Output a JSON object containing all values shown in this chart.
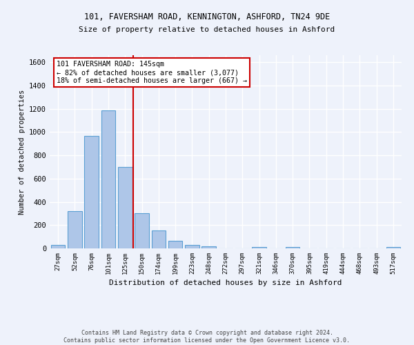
{
  "title1": "101, FAVERSHAM ROAD, KENNINGTON, ASHFORD, TN24 9DE",
  "title2": "Size of property relative to detached houses in Ashford",
  "xlabel": "Distribution of detached houses by size in Ashford",
  "ylabel": "Number of detached properties",
  "footer1": "Contains HM Land Registry data © Crown copyright and database right 2024.",
  "footer2": "Contains public sector information licensed under the Open Government Licence v3.0.",
  "categories": [
    "27sqm",
    "52sqm",
    "76sqm",
    "101sqm",
    "125sqm",
    "150sqm",
    "174sqm",
    "199sqm",
    "223sqm",
    "248sqm",
    "272sqm",
    "297sqm",
    "321sqm",
    "346sqm",
    "370sqm",
    "395sqm",
    "419sqm",
    "444sqm",
    "468sqm",
    "493sqm",
    "517sqm"
  ],
  "values": [
    28,
    320,
    965,
    1185,
    700,
    300,
    155,
    65,
    28,
    18,
    0,
    0,
    12,
    0,
    12,
    0,
    0,
    0,
    0,
    0,
    12
  ],
  "bar_color": "#aec6e8",
  "bar_edge_color": "#5a9fd4",
  "annotation_line1": "101 FAVERSHAM ROAD: 145sqm",
  "annotation_line2": "← 82% of detached houses are smaller (3,077)",
  "annotation_line3": "18% of semi-detached houses are larger (667) →",
  "annotation_box_color": "#ffffff",
  "annotation_border_color": "#cc0000",
  "vline_color": "#cc0000",
  "ylim": [
    0,
    1660
  ],
  "background_color": "#eef2fb",
  "grid_color": "#ffffff"
}
